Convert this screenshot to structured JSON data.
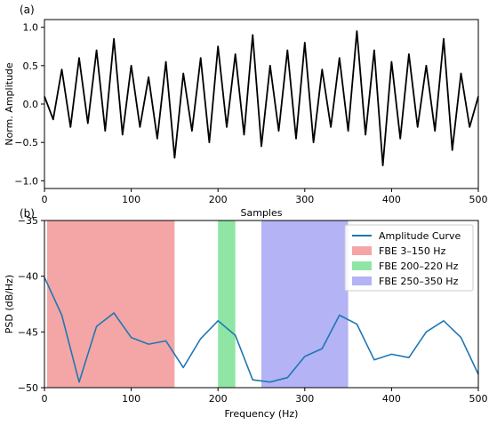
{
  "chart_data": [
    {
      "panel": "(a)",
      "type": "line",
      "xlabel": "Samples",
      "ylabel": "Norm. Amplitude",
      "xlim": [
        0,
        500
      ],
      "ylim": [
        -1.1,
        1.1
      ],
      "xticks": [
        0,
        100,
        200,
        300,
        400,
        500
      ],
      "yticks": [
        -1.0,
        -0.5,
        0.0,
        0.5,
        1.0
      ],
      "ytick_labels": [
        "−1.0",
        "−0.5",
        "0.0",
        "0.5",
        "1.0"
      ],
      "grid": false,
      "series": [
        {
          "color": "#000000",
          "x": [
            0,
            10,
            20,
            30,
            40,
            50,
            60,
            70,
            80,
            90,
            100,
            110,
            120,
            130,
            140,
            150,
            160,
            170,
            180,
            190,
            200,
            210,
            220,
            230,
            240,
            250,
            260,
            270,
            280,
            290,
            300,
            310,
            320,
            330,
            340,
            350,
            360,
            370,
            380,
            390,
            400,
            410,
            420,
            430,
            440,
            450,
            460,
            470,
            480,
            490,
            500
          ],
          "y": [
            0.1,
            -0.2,
            0.45,
            -0.3,
            0.6,
            -0.25,
            0.7,
            -0.35,
            0.85,
            -0.4,
            0.5,
            -0.3,
            0.35,
            -0.45,
            0.55,
            -0.7,
            0.4,
            -0.35,
            0.6,
            -0.5,
            0.75,
            -0.3,
            0.65,
            -0.4,
            0.9,
            -0.55,
            0.5,
            -0.35,
            0.7,
            -0.45,
            0.8,
            -0.5,
            0.45,
            -0.3,
            0.6,
            -0.35,
            0.95,
            -0.4,
            0.7,
            -0.8,
            0.55,
            -0.45,
            0.65,
            -0.3,
            0.5,
            -0.35,
            0.85,
            -0.6,
            0.4,
            -0.3,
            0.1
          ]
        }
      ]
    },
    {
      "panel": "(b)",
      "type": "line",
      "xlabel": "Frequency (Hz)",
      "ylabel": "PSD (dB/Hz)",
      "xlim": [
        0,
        500
      ],
      "ylim": [
        -50,
        -35
      ],
      "xticks": [
        0,
        100,
        200,
        300,
        400,
        500
      ],
      "yticks": [
        -50,
        -45,
        -40,
        -35
      ],
      "ytick_labels": [
        "−50",
        "−45",
        "−40",
        "−35"
      ],
      "grid": false,
      "legend_position": "top-right",
      "bands": [
        {
          "name": "FBE 3–150 Hz",
          "range": [
            3,
            150
          ],
          "color": "#f4a6a6"
        },
        {
          "name": "FBE 200–220 Hz",
          "range": [
            200,
            220
          ],
          "color": "#8fe6a4"
        },
        {
          "name": "FBE 250–350 Hz",
          "range": [
            250,
            350
          ],
          "color": "#b3b3f5"
        }
      ],
      "series": [
        {
          "name": "Amplitude Curve",
          "color": "#1f77b4",
          "x": [
            0,
            20,
            40,
            60,
            80,
            100,
            120,
            140,
            160,
            180,
            200,
            220,
            240,
            260,
            280,
            300,
            320,
            340,
            360,
            380,
            400,
            420,
            440,
            460,
            480,
            500
          ],
          "y": [
            -40.1,
            -43.5,
            -49.5,
            -44.5,
            -43.3,
            -45.5,
            -46.1,
            -45.8,
            -48.2,
            -45.6,
            -44.0,
            -45.3,
            -49.3,
            -49.5,
            -49.1,
            -47.2,
            -46.5,
            -43.5,
            -44.3,
            -47.5,
            -47.0,
            -47.3,
            -45.0,
            -44.0,
            -45.5,
            -48.8
          ]
        }
      ],
      "legend": [
        {
          "label": "Amplitude Curve",
          "kind": "line",
          "color": "#1f77b4"
        },
        {
          "label": "FBE 3–150 Hz",
          "kind": "patch",
          "color": "#f4a6a6"
        },
        {
          "label": "FBE 200–220 Hz",
          "kind": "patch",
          "color": "#8fe6a4"
        },
        {
          "label": "FBE 250–350 Hz",
          "kind": "patch",
          "color": "#b3b3f5"
        }
      ]
    }
  ]
}
